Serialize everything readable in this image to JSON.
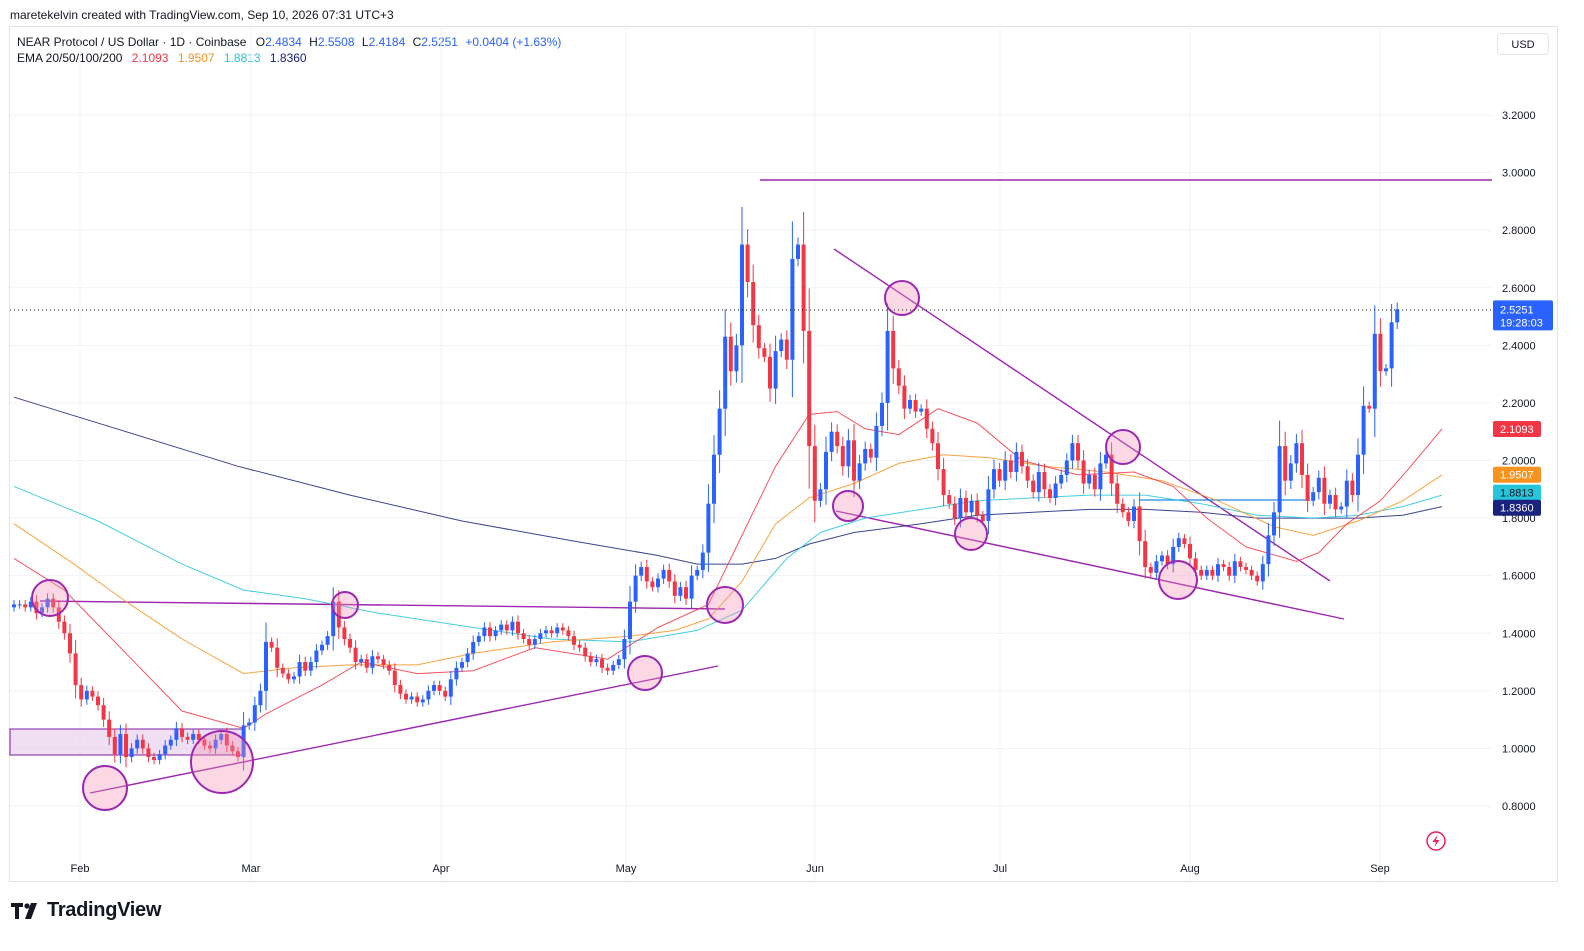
{
  "header": {
    "credit": "maretekelvin created with TradingView.com, Sep 10, 2026 07:31 UTC+3",
    "currency_button": "USD"
  },
  "legend": {
    "symbol": "NEAR Protocol / US Dollar · 1D · Coinbase",
    "open_label": "O",
    "open": "2.4834",
    "high_label": "H",
    "high": "2.5508",
    "low_label": "L",
    "low": "2.4184",
    "close_label": "C",
    "close": "2.5251",
    "change": "+0.0404 (+1.63%)",
    "ema_label": "EMA 20/50/100/200",
    "ema20": "2.1093",
    "ema50": "1.9507",
    "ema100": "1.8813",
    "ema200": "1.8360"
  },
  "footer": {
    "brand": "TradingView"
  },
  "icons": {
    "brand_logo": "tradingview-logo-icon",
    "replay": "lightning-icon"
  },
  "colors": {
    "up": "#2962ff",
    "down": "#f23645",
    "ema20": "#f23645",
    "ema50": "#f7931e",
    "ema100": "#26c6da",
    "ema200": "#1a237e",
    "annotation": "#9c27b0"
  },
  "chart_data": {
    "type": "candlestick",
    "x_ticks": [
      "Feb",
      "Mar",
      "Apr",
      "May",
      "Jun",
      "Jul",
      "Aug",
      "Sep"
    ],
    "y_ticks": [
      "0.8000",
      "1.0000",
      "1.2000",
      "1.4000",
      "1.6000",
      "1.8000",
      "2.0000",
      "2.2000",
      "2.4000",
      "2.6000",
      "2.8000",
      "3.0000",
      "3.2000"
    ],
    "ylim": [
      0.62,
      3.42
    ],
    "price_badge": {
      "price": "2.5251",
      "countdown": "19:28:03",
      "value": 2.5251
    },
    "ema_badges": [
      {
        "name": "EMA 20",
        "label": "2.1093",
        "value": 2.1093
      },
      {
        "name": "EMA 50",
        "label": "1.9507",
        "value": 1.9507
      },
      {
        "name": "EMA 100",
        "label": "1.8813",
        "value": 1.8813
      },
      {
        "name": "EMA 200",
        "label": "1.8360",
        "value": 1.836
      }
    ],
    "closes": [
      1.5,
      1.5,
      1.49,
      1.51,
      1.47,
      1.49,
      1.52,
      1.49,
      1.44,
      1.4,
      1.33,
      1.22,
      1.17,
      1.2,
      1.18,
      1.15,
      1.1,
      1.04,
      0.98,
      1.05,
      0.97,
      1.0,
      1.03,
      1.0,
      0.97,
      0.96,
      0.98,
      1.01,
      1.03,
      1.07,
      1.04,
      1.03,
      1.05,
      1.03,
      1.01,
      1.0,
      1.03,
      1.05,
      1.01,
      0.99,
      0.97,
      1.08,
      1.09,
      1.15,
      1.2,
      1.37,
      1.35,
      1.28,
      1.26,
      1.24,
      1.25,
      1.3,
      1.27,
      1.3,
      1.34,
      1.36,
      1.39,
      1.51,
      1.42,
      1.38,
      1.35,
      1.3,
      1.31,
      1.28,
      1.32,
      1.31,
      1.29,
      1.27,
      1.22,
      1.19,
      1.17,
      1.18,
      1.16,
      1.17,
      1.2,
      1.22,
      1.2,
      1.18,
      1.24,
      1.28,
      1.3,
      1.33,
      1.37,
      1.39,
      1.42,
      1.39,
      1.41,
      1.43,
      1.41,
      1.44,
      1.4,
      1.38,
      1.36,
      1.38,
      1.4,
      1.41,
      1.4,
      1.42,
      1.41,
      1.39,
      1.36,
      1.35,
      1.32,
      1.3,
      1.31,
      1.28,
      1.27,
      1.29,
      1.31,
      1.38,
      1.51,
      1.6,
      1.63,
      1.58,
      1.56,
      1.59,
      1.62,
      1.58,
      1.53,
      1.56,
      1.52,
      1.6,
      1.62,
      1.68,
      1.85,
      2.02,
      2.18,
      2.43,
      2.31,
      2.4,
      2.75,
      2.62,
      2.47,
      2.39,
      2.36,
      2.25,
      2.38,
      2.42,
      2.35,
      2.7,
      2.75,
      2.45,
      2.05,
      1.86,
      1.9,
      2.03,
      2.1,
      2.05,
      1.98,
      2.07,
      1.93,
      1.99,
      2.04,
      2.01,
      2.12,
      2.2,
      2.45,
      2.32,
      2.26,
      2.18,
      2.21,
      2.17,
      2.18,
      2.11,
      2.06,
      1.97,
      1.88,
      1.85,
      1.8,
      1.87,
      1.82,
      1.86,
      1.81,
      1.79,
      1.9,
      1.97,
      1.93,
      2.0,
      1.96,
      2.03,
      1.98,
      1.93,
      1.89,
      1.96,
      1.9,
      1.87,
      1.92,
      1.95,
      2.0,
      2.06,
      2.0,
      1.92,
      1.95,
      1.9,
      1.99,
      2.02,
      1.92,
      1.85,
      1.82,
      1.79,
      1.84,
      1.72,
      1.63,
      1.61,
      1.65,
      1.67,
      1.64,
      1.7,
      1.73,
      1.71,
      1.66,
      1.62,
      1.6,
      1.62,
      1.6,
      1.64,
      1.63,
      1.6,
      1.65,
      1.63,
      1.62,
      1.6,
      1.58,
      1.64,
      1.74,
      1.82,
      2.05,
      1.93,
      1.99,
      2.06,
      1.95,
      1.86,
      1.89,
      1.94,
      1.85,
      1.88,
      1.83,
      1.84,
      1.93,
      1.88,
      2.02,
      2.19,
      2.18,
      2.44,
      2.31,
      2.32,
      2.48,
      2.5251
    ],
    "ema20": [
      [
        0,
        1.66
      ],
      [
        9,
        1.55
      ],
      [
        20,
        1.33
      ],
      [
        30,
        1.13
      ],
      [
        41,
        1.07
      ],
      [
        45,
        1.12
      ],
      [
        55,
        1.22
      ],
      [
        62,
        1.3
      ],
      [
        72,
        1.26
      ],
      [
        82,
        1.27
      ],
      [
        93,
        1.35
      ],
      [
        106,
        1.31
      ],
      [
        115,
        1.42
      ],
      [
        124,
        1.5
      ],
      [
        130,
        1.74
      ],
      [
        136,
        1.98
      ],
      [
        142,
        2.16
      ],
      [
        147,
        2.17
      ],
      [
        152,
        2.11
      ],
      [
        158,
        2.09
      ],
      [
        165,
        2.18
      ],
      [
        172,
        2.13
      ],
      [
        180,
        2.0
      ],
      [
        190,
        1.95
      ],
      [
        200,
        1.96
      ],
      [
        207,
        1.91
      ],
      [
        213,
        1.8
      ],
      [
        220,
        1.7
      ],
      [
        229,
        1.65
      ],
      [
        233,
        1.68
      ],
      [
        238,
        1.78
      ],
      [
        244,
        1.86
      ],
      [
        249,
        1.97
      ],
      [
        255,
        2.11
      ]
    ],
    "ema50": [
      [
        0,
        1.78
      ],
      [
        10,
        1.65
      ],
      [
        20,
        1.51
      ],
      [
        30,
        1.38
      ],
      [
        41,
        1.26
      ],
      [
        50,
        1.28
      ],
      [
        60,
        1.29
      ],
      [
        72,
        1.29
      ],
      [
        82,
        1.33
      ],
      [
        96,
        1.37
      ],
      [
        110,
        1.39
      ],
      [
        118,
        1.41
      ],
      [
        124,
        1.45
      ],
      [
        130,
        1.58
      ],
      [
        136,
        1.78
      ],
      [
        142,
        1.87
      ],
      [
        150,
        1.92
      ],
      [
        158,
        1.99
      ],
      [
        166,
        2.02
      ],
      [
        174,
        2.01
      ],
      [
        184,
        1.98
      ],
      [
        195,
        1.96
      ],
      [
        205,
        1.93
      ],
      [
        215,
        1.86
      ],
      [
        225,
        1.77
      ],
      [
        232,
        1.74
      ],
      [
        240,
        1.79
      ],
      [
        248,
        1.86
      ],
      [
        255,
        1.95
      ]
    ],
    "ema100": [
      [
        0,
        1.91
      ],
      [
        15,
        1.79
      ],
      [
        30,
        1.64
      ],
      [
        41,
        1.55
      ],
      [
        52,
        1.52
      ],
      [
        65,
        1.47
      ],
      [
        82,
        1.42
      ],
      [
        96,
        1.38
      ],
      [
        110,
        1.37
      ],
      [
        122,
        1.41
      ],
      [
        130,
        1.48
      ],
      [
        138,
        1.66
      ],
      [
        144,
        1.75
      ],
      [
        152,
        1.8
      ],
      [
        162,
        1.83
      ],
      [
        172,
        1.86
      ],
      [
        182,
        1.87
      ],
      [
        192,
        1.88
      ],
      [
        202,
        1.88
      ],
      [
        212,
        1.85
      ],
      [
        222,
        1.81
      ],
      [
        232,
        1.8
      ],
      [
        240,
        1.81
      ],
      [
        248,
        1.84
      ],
      [
        255,
        1.88
      ]
    ],
    "ema200": [
      [
        0,
        2.22
      ],
      [
        20,
        2.1
      ],
      [
        40,
        1.98
      ],
      [
        60,
        1.88
      ],
      [
        80,
        1.79
      ],
      [
        100,
        1.72
      ],
      [
        115,
        1.67
      ],
      [
        122,
        1.64
      ],
      [
        130,
        1.64
      ],
      [
        136,
        1.66
      ],
      [
        142,
        1.71
      ],
      [
        150,
        1.75
      ],
      [
        162,
        1.78
      ],
      [
        172,
        1.81
      ],
      [
        182,
        1.82
      ],
      [
        192,
        1.83
      ],
      [
        202,
        1.83
      ],
      [
        212,
        1.82
      ],
      [
        222,
        1.8
      ],
      [
        232,
        1.8
      ],
      [
        240,
        1.8
      ],
      [
        248,
        1.81
      ],
      [
        255,
        1.84
      ]
    ]
  }
}
